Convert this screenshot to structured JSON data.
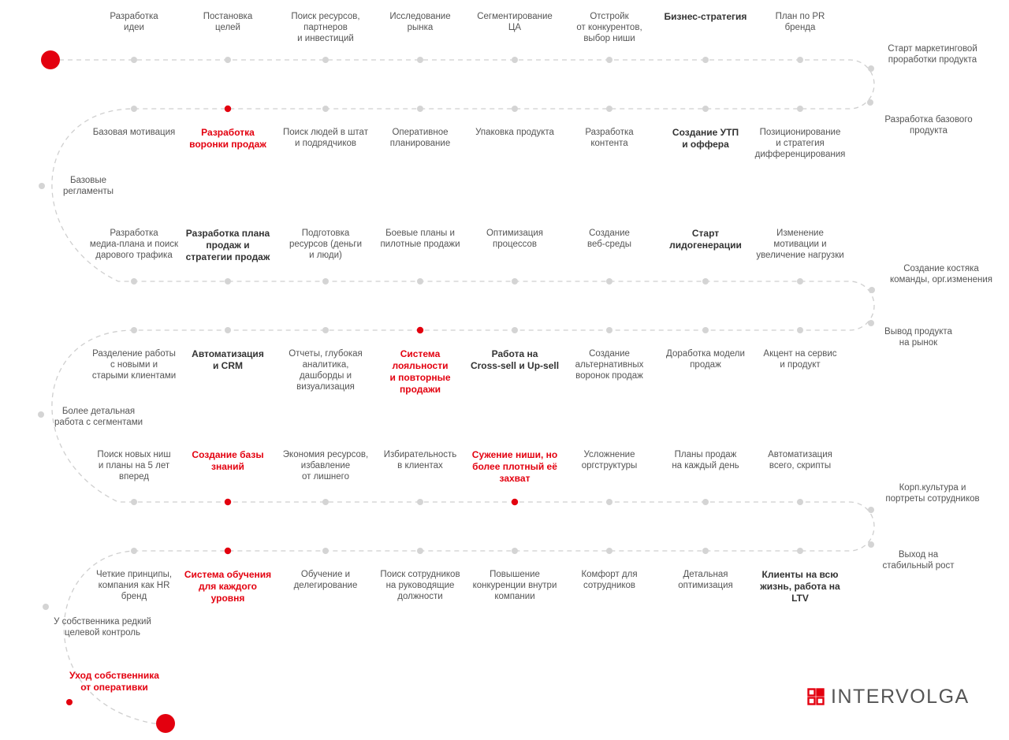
{
  "colors": {
    "accent": "#e3000f",
    "path": "#cfcfcf",
    "dot": "#d4d4d4",
    "text": "#555555",
    "text_bold": "#333333"
  },
  "roadmap": {
    "rows": [
      {
        "labels": [
          {
            "text": "Разработка\nидеи"
          },
          {
            "text": "Постановка\nцелей"
          },
          {
            "text": "Поиск ресурсов,\nпартнеров\nи инвестиций"
          },
          {
            "text": "Исследование\nрынка"
          },
          {
            "text": "Сегментирование\nЦА"
          },
          {
            "text": "Отстройк\nот конкурентов,\nвыбор ниши"
          },
          {
            "text": "Бизнес-стратегия",
            "style": "bold"
          },
          {
            "text": "План по PR\nбренда"
          }
        ]
      },
      {
        "labels": [
          {
            "text": "Базовая мотивация"
          },
          {
            "text": "Разработка\nворонки продаж",
            "style": "red"
          },
          {
            "text": "Поиск людей в штат\nи подрядчиков"
          },
          {
            "text": "Оперативное\nпланирование"
          },
          {
            "text": "Упаковка продукта"
          },
          {
            "text": "Разработка\nконтента"
          },
          {
            "text": "Создание УТП\nи оффера",
            "style": "bold"
          },
          {
            "text": "Позиционирование\nи стратегия\nдифференцирования"
          }
        ]
      },
      {
        "labels": [
          {
            "text": "Разработка\nмедиа-плана и поиск\nдарового трафика"
          },
          {
            "text": "Разработка плана\nпродаж и\nстратегии продаж",
            "style": "bold"
          },
          {
            "text": "Подготовка\nресурсов (деньги\nи люди)"
          },
          {
            "text": "Боевые планы и\nпилотные продажи"
          },
          {
            "text": "Оптимизация\nпроцессов"
          },
          {
            "text": "Создание\nвеб-среды"
          },
          {
            "text": "Старт\nлидогенерации",
            "style": "bold"
          },
          {
            "text": "Изменение\nмотивации и\nувеличение нагрузки"
          }
        ]
      },
      {
        "labels": [
          {
            "text": "Разделение работы\nс новыми и\nстарыми клиентами"
          },
          {
            "text": "Автоматизация\nи CRM",
            "style": "bold"
          },
          {
            "text": "Отчеты, глубокая\nаналитика,\nдашборды и\nвизуализация"
          },
          {
            "text": "Система\nлояльности\nи повторные\nпродажи",
            "style": "red"
          },
          {
            "text": "Работа на\nCross-sell и Up-sell",
            "style": "bold"
          },
          {
            "text": "Создание\nальтернативных\nворонок продаж"
          },
          {
            "text": "Доработка модели\nпродаж"
          },
          {
            "text": "Акцент на сервис\nи продукт"
          }
        ]
      },
      {
        "labels": [
          {
            "text": "Поиск новых ниш\nи планы на 5 лет\nвперед"
          },
          {
            "text": "Создание базы\nзнаний",
            "style": "red"
          },
          {
            "text": "Экономия ресурсов,\nизбавление\nот лишнего"
          },
          {
            "text": "Избирательность\nв клиентах"
          },
          {
            "text": "Сужение ниши, но\nболее плотный её\nзахват",
            "style": "red"
          },
          {
            "text": "Усложнение\nоргструктуры"
          },
          {
            "text": "Планы продаж\nна каждый день"
          },
          {
            "text": "Автоматизация\nвсего, скрипты"
          }
        ]
      },
      {
        "labels": [
          {
            "text": "Четкие принципы,\nкомпания как HR\nбренд"
          },
          {
            "text": "Система обучения\nдля каждого\nуровня",
            "style": "red"
          },
          {
            "text": "Обучение и\nделегирование"
          },
          {
            "text": "Поиск сотрудников\nна руководящие\nдолжности"
          },
          {
            "text": "Повышение\nконкуренции внутри\nкомпании"
          },
          {
            "text": "Комфорт для\nсотрудников"
          },
          {
            "text": "Детальная\nоптимизация"
          },
          {
            "text": "Клиенты на всю\nжизнь, работа на\nLTV",
            "style": "bold"
          }
        ]
      }
    ],
    "side_labels": [
      {
        "text": "Старт маркетинговой\nпроработки продукта"
      },
      {
        "text": "Разработка базового\nпродукта"
      },
      {
        "text": "Базовые\nрегламенты"
      },
      {
        "text": "Создание костяка\nкоманды, орг.изменения"
      },
      {
        "text": "Вывод продукта\nна рынок"
      },
      {
        "text": "Более детальная\nработа с сегментами"
      },
      {
        "text": "Корп.культура и\nпортреты сотрудников"
      },
      {
        "text": "Выход на\nстабильный рост"
      },
      {
        "text": "У собственника редкий\nцелевой контроль"
      },
      {
        "text": "Уход собственника\nот оперативки",
        "style": "red"
      }
    ]
  },
  "logo": {
    "text": "INTERVOLGA",
    "icon": "intervolga-grid-icon"
  }
}
